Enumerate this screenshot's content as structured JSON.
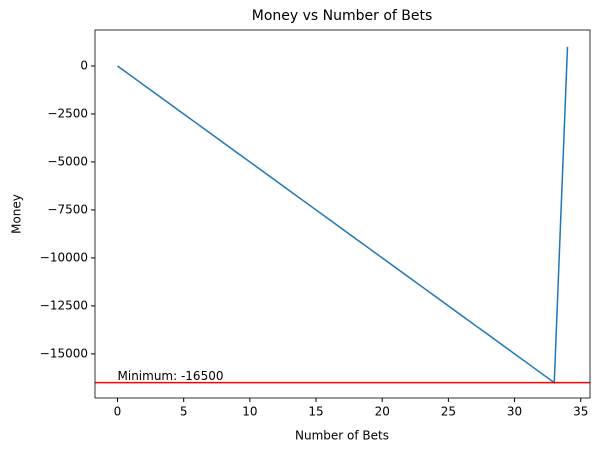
{
  "chart_data": {
    "type": "line",
    "title": "Money vs Number of Bets",
    "xlabel": "Number of Bets",
    "ylabel": "Money",
    "x": [
      0,
      1,
      2,
      3,
      4,
      5,
      6,
      7,
      8,
      9,
      10,
      11,
      12,
      13,
      14,
      15,
      16,
      17,
      18,
      19,
      20,
      21,
      22,
      23,
      24,
      25,
      26,
      27,
      28,
      29,
      30,
      31,
      32,
      33,
      34
    ],
    "series": [
      {
        "color": "#1f77b4",
        "values": [
          0,
          -500,
          -1000,
          -1500,
          -2000,
          -2500,
          -3000,
          -3500,
          -4000,
          -4500,
          -5000,
          -5500,
          -6000,
          -6500,
          -7000,
          -7500,
          -8000,
          -8500,
          -9000,
          -9500,
          -10000,
          -10500,
          -11000,
          -11500,
          -12000,
          -12500,
          -13000,
          -13500,
          -14000,
          -14500,
          -15000,
          -15500,
          -16000,
          -16500,
          1000
        ]
      }
    ],
    "hline": {
      "value": -16500,
      "color": "#ff0000",
      "label": "Minimum: -16500"
    },
    "xlim": [
      -1.7,
      35.7
    ],
    "ylim": [
      -17300,
      1875
    ],
    "xticks": [
      0,
      5,
      10,
      15,
      20,
      25,
      30,
      35
    ],
    "yticks": [
      0,
      {
        "value": -2500,
        "label": "−2500"
      },
      {
        "value": -5000,
        "label": "−5000"
      },
      {
        "value": -7500,
        "label": "−7500"
      },
      {
        "value": -10000,
        "label": "−10000"
      },
      {
        "value": -12500,
        "label": "−12500"
      },
      {
        "value": -15000,
        "label": "−15000"
      }
    ]
  }
}
